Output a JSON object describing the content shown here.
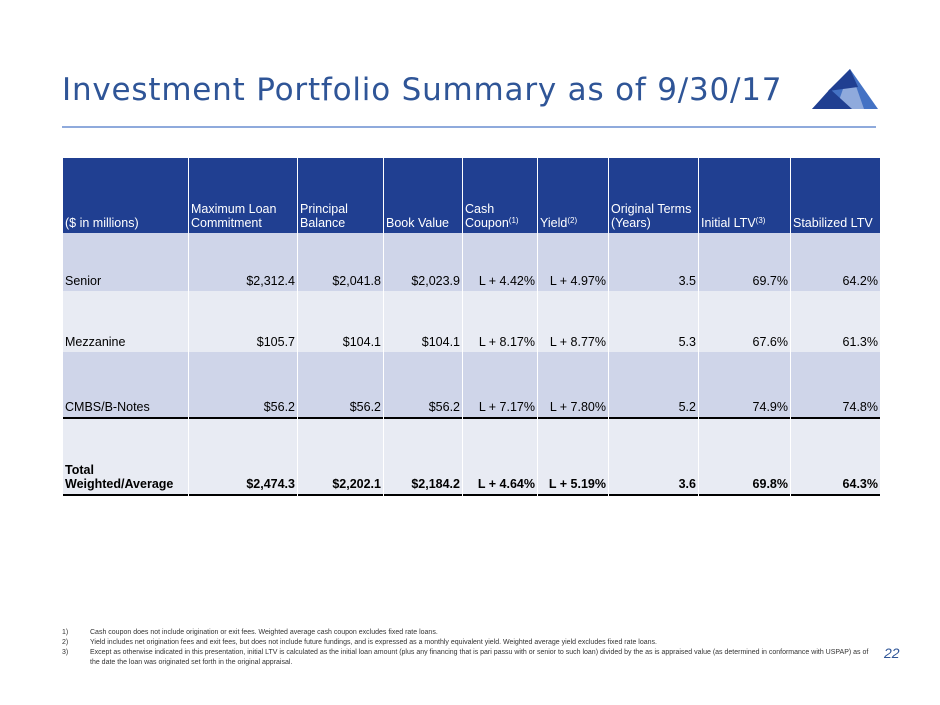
{
  "title": "Investment Portfolio Summary as of 9/30/17",
  "logo": {
    "icon": "mountain-triangles-logo",
    "colors": [
      "#203f91",
      "#4472c4",
      "#8faadc"
    ]
  },
  "table": {
    "headers": [
      {
        "text": "($ in millions)",
        "sup": ""
      },
      {
        "text": "Maximum Loan Commitment",
        "sup": ""
      },
      {
        "text": "Principal Balance",
        "sup": ""
      },
      {
        "text": "Book Value",
        "sup": ""
      },
      {
        "text": "Cash Coupon",
        "sup": "(1)"
      },
      {
        "text": "Yield",
        "sup": "(2)"
      },
      {
        "text": "Original Terms (Years)",
        "sup": ""
      },
      {
        "text": "Initial LTV",
        "sup": "(3)"
      },
      {
        "text": "Stabilized LTV",
        "sup": ""
      }
    ],
    "rows": [
      [
        "Senior",
        "$2,312.4",
        "$2,041.8",
        "$2,023.9",
        "L + 4.42%",
        "L + 4.97%",
        "3.5",
        "69.7%",
        "64.2%"
      ],
      [
        "Mezzanine",
        "$105.7",
        "$104.1",
        "$104.1",
        "L + 8.17%",
        "L + 8.77%",
        "5.3",
        "67.6%",
        "61.3%"
      ],
      [
        "CMBS/B-Notes",
        "$56.2",
        "$56.2",
        "$56.2",
        "L + 7.17%",
        "L + 7.80%",
        "5.2",
        "74.9%",
        "74.8%"
      ],
      [
        "Total Weighted/Average",
        "$2,474.3",
        "$2,202.1",
        "$2,184.2",
        "L + 4.64%",
        "L + 5.19%",
        "3.6",
        "69.8%",
        "64.3%"
      ]
    ]
  },
  "footnotes": [
    {
      "num": "1)",
      "text": "Cash coupon does not include origination or exit fees. Weighted average cash coupon excludes fixed rate loans."
    },
    {
      "num": "2)",
      "text": "Yield includes net origination fees and exit fees, but does not include future fundings, and is expressed as a monthly equivalent yield.  Weighted average yield excludes fixed rate loans."
    },
    {
      "num": "3)",
      "text": "Except as otherwise indicated in this presentation, initial LTV is calculated as the initial loan amount (plus any financing that is pari passu with or senior to such loan) divided by the as is appraised value (as determined in conformance with USPAP) as of the date the loan was originated set forth in the original appraisal."
    }
  ],
  "page_number": "22"
}
